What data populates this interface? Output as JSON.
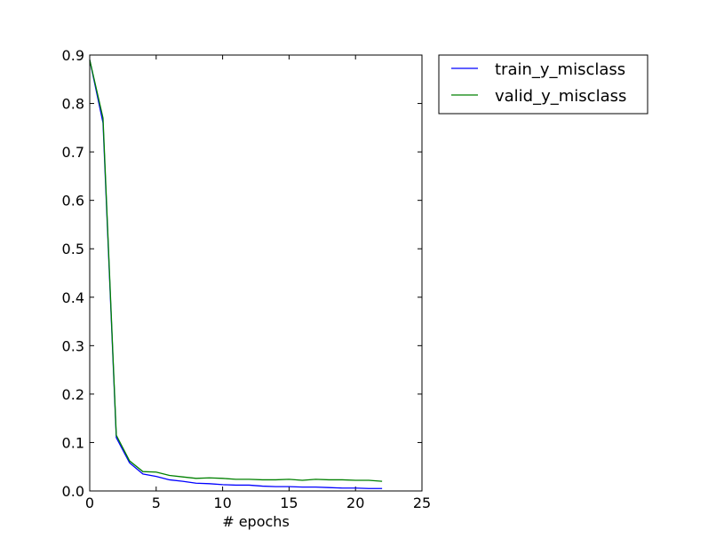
{
  "chart_data": {
    "type": "line",
    "xlabel": "# epochs",
    "x": [
      0,
      1,
      2,
      3,
      4,
      5,
      6,
      7,
      8,
      9,
      10,
      11,
      12,
      13,
      14,
      15,
      16,
      17,
      18,
      19,
      20,
      21,
      22
    ],
    "series": [
      {
        "name": "train_y_misclass",
        "color": "#0000ff",
        "values": [
          0.89,
          0.76,
          0.11,
          0.058,
          0.035,
          0.03,
          0.023,
          0.02,
          0.016,
          0.015,
          0.013,
          0.012,
          0.012,
          0.01,
          0.009,
          0.009,
          0.008,
          0.008,
          0.007,
          0.006,
          0.006,
          0.005,
          0.005
        ]
      },
      {
        "name": "valid_y_misclass",
        "color": "#008000",
        "values": [
          0.89,
          0.77,
          0.115,
          0.062,
          0.04,
          0.039,
          0.032,
          0.029,
          0.026,
          0.027,
          0.026,
          0.024,
          0.024,
          0.023,
          0.023,
          0.024,
          0.022,
          0.024,
          0.023,
          0.023,
          0.022,
          0.022,
          0.02
        ]
      }
    ],
    "xlim": [
      0,
      25
    ],
    "xticks": [
      0,
      5,
      10,
      15,
      20,
      25
    ],
    "ylim": [
      0,
      0.9
    ],
    "yticks": [
      {
        "value": 0,
        "label": "0.0"
      },
      0.1,
      0.2,
      0.3,
      0.4,
      0.5,
      0.6,
      0.7,
      0.8,
      0.9
    ],
    "grid": false,
    "legend": "outside-upper-right"
  }
}
